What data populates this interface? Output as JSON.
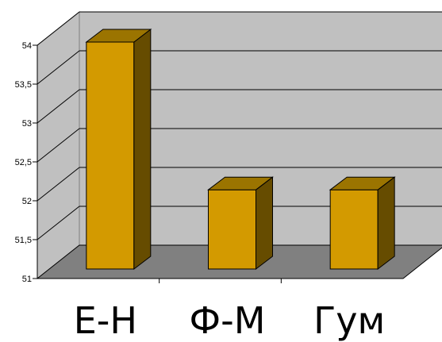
{
  "chart_data": {
    "type": "bar",
    "categories": [
      "Е-Н",
      "Ф-М",
      "Гум"
    ],
    "values": [
      54.0,
      52.1,
      52.1
    ],
    "ylim": [
      51,
      54
    ],
    "y_ticks": [
      "51",
      "51,5",
      "52",
      "52,5",
      "53",
      "53,5",
      "54"
    ],
    "grid": true,
    "legend": "none",
    "style": "3d-column",
    "colors": {
      "bar_front": "#D39A00",
      "bar_side": "#664C00",
      "bar_top": "#9B7400",
      "wall": "#C0C0C0",
      "floor": "#808080",
      "gridline": "#000000"
    }
  }
}
